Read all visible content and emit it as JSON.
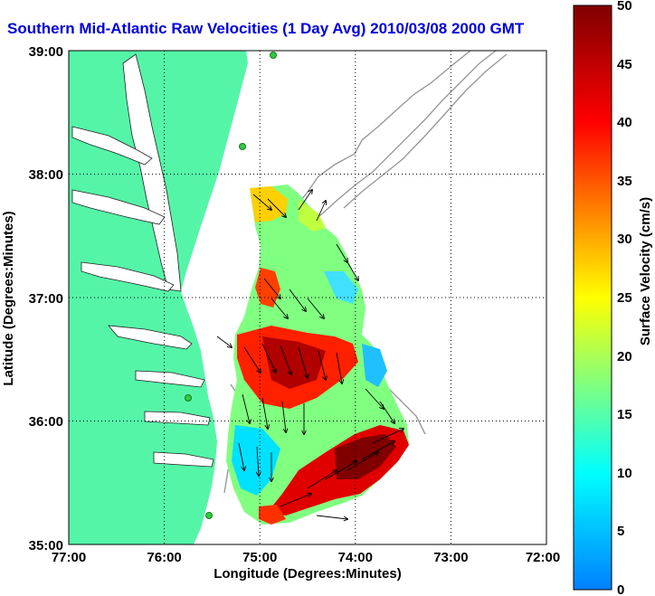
{
  "title": "Southern Mid-Atlantic Raw Velocities (1 Day Avg) 2010/03/08 2000 GMT",
  "x_axis": {
    "label": "Longitude (Degrees:Minutes)",
    "ticks": [
      "77:00",
      "76:00",
      "75:00",
      "74:00",
      "73:00",
      "72:00"
    ]
  },
  "y_axis": {
    "label": "Latitude (Degrees:Minutes)",
    "ticks": [
      "39:00",
      "38:00",
      "37:00",
      "36:00",
      "35:00"
    ]
  },
  "colorbar": {
    "label": "Surface Velocity (cm/s)",
    "ticks": [
      "50",
      "45",
      "40",
      "35",
      "30",
      "25",
      "20",
      "15",
      "10",
      "5",
      "0"
    ],
    "range": [
      0,
      50
    ],
    "colormap": "jet"
  },
  "colors": {
    "land": "#55f5a8",
    "title": "#0000dd",
    "bathymetry": "#999999",
    "station": "#2ecc40"
  },
  "map_extent": {
    "lon": [
      -77,
      -72
    ],
    "lat": [
      35,
      39
    ]
  },
  "grid": true
}
